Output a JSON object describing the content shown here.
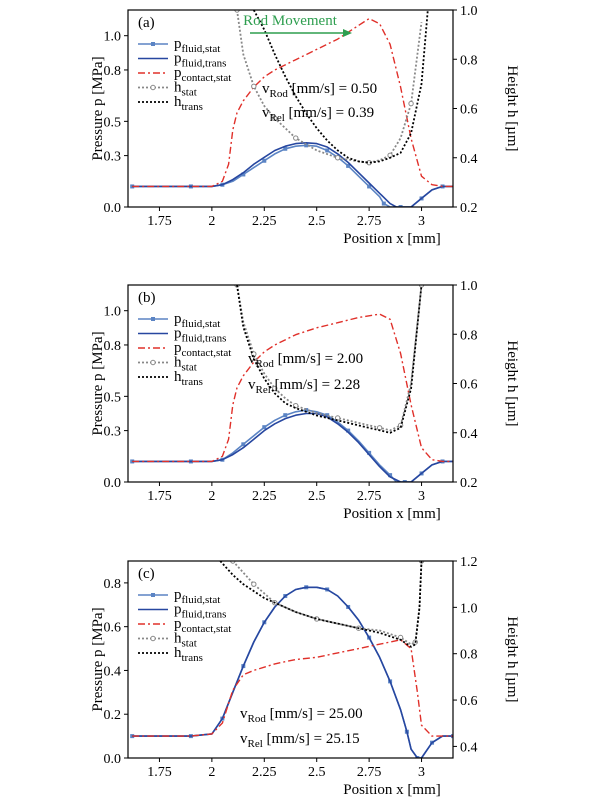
{
  "chart_data": [
    {
      "type": "line",
      "panel": "(a)",
      "xlabel": "Position x [mm]",
      "ylabel": "Pressure p [MPa]",
      "y2label": "Height h [µm]",
      "xlim": [
        1.6,
        3.15
      ],
      "ylim": [
        0,
        1.15
      ],
      "y2lim": [
        0.2,
        1.0
      ],
      "xticks": [
        "1.75",
        "2",
        "2.25",
        "2.5",
        "2.75",
        "3"
      ],
      "yticks": [
        "0.0",
        "0.3",
        "0.5",
        "0.8",
        "1.0"
      ],
      "y2ticks": [
        "0.2",
        "0.4",
        "0.6",
        "0.8",
        "1.0"
      ],
      "annotation_top": "Rod Movement",
      "annotation_rod": "[mm/s] = 0.50",
      "annotation_rel": "[mm/s] = 0.39",
      "legend_pos": "top-left",
      "series": [
        {
          "name": "p_fluid,stat",
          "axis": "left",
          "style": "solid-square",
          "color": "#5b84c4",
          "x": [
            1.62,
            1.75,
            1.9,
            2.0,
            2.05,
            2.1,
            2.15,
            2.2,
            2.25,
            2.3,
            2.35,
            2.4,
            2.45,
            2.5,
            2.55,
            2.6,
            2.65,
            2.7,
            2.75,
            2.8,
            2.82,
            2.85,
            2.9,
            2.95,
            3.0,
            3.05,
            3.1,
            3.15
          ],
          "y": [
            0.12,
            0.12,
            0.12,
            0.12,
            0.13,
            0.15,
            0.19,
            0.23,
            0.27,
            0.31,
            0.34,
            0.355,
            0.36,
            0.355,
            0.33,
            0.29,
            0.24,
            0.18,
            0.12,
            0.06,
            0.02,
            0.0,
            0.0,
            0.0,
            0.05,
            0.1,
            0.12,
            0.12
          ]
        },
        {
          "name": "p_fluid,trans",
          "axis": "left",
          "style": "solid",
          "color": "#2747a0",
          "x": [
            1.62,
            1.75,
            1.9,
            2.0,
            2.05,
            2.1,
            2.15,
            2.2,
            2.25,
            2.3,
            2.35,
            2.4,
            2.45,
            2.5,
            2.55,
            2.6,
            2.65,
            2.7,
            2.75,
            2.8,
            2.85,
            2.88,
            2.92,
            2.95,
            3.0,
            3.05,
            3.1,
            3.15
          ],
          "y": [
            0.12,
            0.12,
            0.12,
            0.12,
            0.13,
            0.16,
            0.2,
            0.25,
            0.29,
            0.33,
            0.355,
            0.37,
            0.375,
            0.37,
            0.35,
            0.31,
            0.26,
            0.2,
            0.14,
            0.08,
            0.02,
            0.0,
            0.0,
            0.0,
            0.05,
            0.1,
            0.12,
            0.12
          ]
        },
        {
          "name": "p_contact,stat",
          "axis": "left",
          "style": "dash-dot",
          "color": "#e0302a",
          "x": [
            1.62,
            1.75,
            1.9,
            2.0,
            2.05,
            2.08,
            2.1,
            2.12,
            2.15,
            2.2,
            2.25,
            2.3,
            2.4,
            2.5,
            2.6,
            2.7,
            2.75,
            2.8,
            2.85,
            2.9,
            2.95,
            3.0,
            3.05,
            3.1,
            3.15
          ],
          "y": [
            0.12,
            0.12,
            0.12,
            0.12,
            0.15,
            0.25,
            0.45,
            0.55,
            0.62,
            0.7,
            0.76,
            0.8,
            0.86,
            0.92,
            0.98,
            1.06,
            1.1,
            1.07,
            0.95,
            0.7,
            0.4,
            0.18,
            0.13,
            0.12,
            0.12
          ]
        },
        {
          "name": "h_stat",
          "axis": "right",
          "style": "dotted-circle",
          "color": "#888888",
          "x": [
            2.12,
            2.15,
            2.2,
            2.25,
            2.3,
            2.35,
            2.4,
            2.5,
            2.6,
            2.7,
            2.75,
            2.8,
            2.85,
            2.9,
            2.95,
            3.0
          ],
          "y": [
            1.0,
            0.82,
            0.69,
            0.61,
            0.56,
            0.52,
            0.48,
            0.43,
            0.4,
            0.385,
            0.38,
            0.39,
            0.41,
            0.48,
            0.62,
            0.95
          ]
        },
        {
          "name": "h_trans",
          "axis": "right",
          "style": "dotted",
          "color": "#000000",
          "x": [
            2.2,
            2.25,
            2.3,
            2.35,
            2.4,
            2.45,
            2.5,
            2.55,
            2.6,
            2.65,
            2.7,
            2.75,
            2.8,
            2.85,
            2.9,
            2.95,
            3.0,
            3.03
          ],
          "y": [
            1.0,
            0.92,
            0.82,
            0.73,
            0.65,
            0.58,
            0.52,
            0.47,
            0.43,
            0.4,
            0.385,
            0.38,
            0.385,
            0.4,
            0.42,
            0.5,
            0.7,
            1.0
          ]
        }
      ]
    },
    {
      "type": "line",
      "panel": "(b)",
      "xlabel": "Position x [mm]",
      "ylabel": "Pressure p [MPa]",
      "y2label": "Height h [µm]",
      "xlim": [
        1.6,
        3.15
      ],
      "ylim": [
        0,
        1.15
      ],
      "y2lim": [
        0.2,
        1.0
      ],
      "xticks": [
        "1.75",
        "2",
        "2.25",
        "2.5",
        "2.75",
        "3"
      ],
      "yticks": [
        "0.0",
        "0.3",
        "0.5",
        "0.8",
        "1.0"
      ],
      "y2ticks": [
        "0.2",
        "0.4",
        "0.6",
        "0.8",
        "1.0"
      ],
      "annotation_rod": "[mm/s] = 2.00",
      "annotation_rel": "[mm/s] = 2.28",
      "legend_pos": "top-left",
      "series": [
        {
          "name": "p_fluid,stat",
          "axis": "left",
          "style": "solid-square",
          "color": "#5b84c4",
          "x": [
            1.62,
            1.75,
            1.9,
            2.0,
            2.05,
            2.1,
            2.15,
            2.2,
            2.25,
            2.3,
            2.35,
            2.4,
            2.45,
            2.5,
            2.55,
            2.6,
            2.65,
            2.7,
            2.75,
            2.8,
            2.85,
            2.88,
            2.92,
            2.95,
            3.0,
            3.05,
            3.1,
            3.15
          ],
          "y": [
            0.12,
            0.12,
            0.12,
            0.12,
            0.13,
            0.17,
            0.22,
            0.27,
            0.32,
            0.36,
            0.39,
            0.41,
            0.42,
            0.41,
            0.39,
            0.35,
            0.3,
            0.24,
            0.17,
            0.1,
            0.04,
            0.0,
            0.0,
            0.0,
            0.05,
            0.1,
            0.12,
            0.12
          ]
        },
        {
          "name": "p_fluid,trans",
          "axis": "left",
          "style": "solid",
          "color": "#2747a0",
          "x": [
            1.62,
            1.75,
            1.9,
            2.0,
            2.05,
            2.1,
            2.15,
            2.2,
            2.25,
            2.3,
            2.35,
            2.4,
            2.45,
            2.5,
            2.55,
            2.6,
            2.65,
            2.7,
            2.75,
            2.8,
            2.85,
            2.9,
            2.95,
            3.0,
            3.05,
            3.1,
            3.15
          ],
          "y": [
            0.12,
            0.12,
            0.12,
            0.12,
            0.13,
            0.16,
            0.2,
            0.25,
            0.3,
            0.34,
            0.37,
            0.39,
            0.4,
            0.4,
            0.38,
            0.34,
            0.29,
            0.23,
            0.16,
            0.09,
            0.03,
            0.0,
            0.0,
            0.05,
            0.1,
            0.12,
            0.12
          ]
        },
        {
          "name": "p_contact,stat",
          "axis": "left",
          "style": "dash-dot",
          "color": "#e0302a",
          "x": [
            1.62,
            1.75,
            1.9,
            2.0,
            2.05,
            2.08,
            2.1,
            2.12,
            2.15,
            2.2,
            2.25,
            2.3,
            2.4,
            2.5,
            2.6,
            2.7,
            2.8,
            2.85,
            2.9,
            2.95,
            3.0,
            3.05,
            3.1,
            3.15
          ],
          "y": [
            0.12,
            0.12,
            0.12,
            0.12,
            0.15,
            0.25,
            0.45,
            0.55,
            0.62,
            0.7,
            0.76,
            0.8,
            0.86,
            0.9,
            0.93,
            0.96,
            0.98,
            0.95,
            0.75,
            0.45,
            0.2,
            0.13,
            0.12,
            0.12
          ]
        },
        {
          "name": "h_stat",
          "axis": "right",
          "style": "dotted-circle",
          "color": "#888888",
          "x": [
            2.12,
            2.15,
            2.2,
            2.25,
            2.3,
            2.35,
            2.4,
            2.5,
            2.6,
            2.7,
            2.8,
            2.85,
            2.9,
            2.95,
            3.0
          ],
          "y": [
            1.0,
            0.85,
            0.72,
            0.64,
            0.58,
            0.54,
            0.51,
            0.48,
            0.46,
            0.44,
            0.42,
            0.41,
            0.43,
            0.6,
            1.0
          ]
        },
        {
          "name": "h_trans",
          "axis": "right",
          "style": "dotted",
          "color": "#000000",
          "x": [
            2.12,
            2.15,
            2.2,
            2.25,
            2.3,
            2.35,
            2.4,
            2.5,
            2.6,
            2.7,
            2.8,
            2.85,
            2.9,
            2.95,
            3.0
          ],
          "y": [
            1.0,
            0.83,
            0.7,
            0.62,
            0.56,
            0.52,
            0.5,
            0.47,
            0.45,
            0.43,
            0.41,
            0.4,
            0.42,
            0.58,
            1.0
          ]
        }
      ]
    },
    {
      "type": "line",
      "panel": "(c)",
      "xlabel": "Position x [mm]",
      "ylabel": "Pressure p [MPa]",
      "y2label": "Height h [µm]",
      "xlim": [
        1.6,
        3.15
      ],
      "ylim": [
        0,
        0.9
      ],
      "y2lim": [
        0.35,
        1.2
      ],
      "xticks": [
        "1.75",
        "2",
        "2.25",
        "2.5",
        "2.75",
        "3"
      ],
      "yticks": [
        "0.0",
        "0.2",
        "0.4",
        "0.6",
        "0.8"
      ],
      "y2ticks": [
        "0.4",
        "0.6",
        "0.8",
        "1.0",
        "1.2"
      ],
      "annotation_rod": "[mm/s] = 25.00",
      "annotation_rel": "[mm/s] = 25.15",
      "legend_pos": "top-left",
      "series": [
        {
          "name": "p_fluid,stat",
          "axis": "left",
          "style": "solid-square",
          "color": "#5b84c4",
          "x": [
            1.62,
            1.75,
            1.9,
            2.0,
            2.05,
            2.1,
            2.15,
            2.2,
            2.25,
            2.3,
            2.35,
            2.4,
            2.45,
            2.5,
            2.55,
            2.6,
            2.65,
            2.7,
            2.75,
            2.8,
            2.85,
            2.9,
            2.93,
            2.95,
            2.98,
            3.0,
            3.05,
            3.1,
            3.15
          ],
          "y": [
            0.1,
            0.1,
            0.1,
            0.11,
            0.18,
            0.3,
            0.42,
            0.53,
            0.62,
            0.69,
            0.74,
            0.77,
            0.78,
            0.78,
            0.77,
            0.74,
            0.69,
            0.63,
            0.55,
            0.46,
            0.35,
            0.22,
            0.12,
            0.04,
            0.0,
            0.0,
            0.07,
            0.1,
            0.1
          ]
        },
        {
          "name": "p_fluid,trans",
          "axis": "left",
          "style": "solid",
          "color": "#2747a0",
          "x": [
            1.62,
            1.75,
            1.9,
            2.0,
            2.05,
            2.1,
            2.15,
            2.2,
            2.25,
            2.3,
            2.35,
            2.4,
            2.45,
            2.5,
            2.55,
            2.6,
            2.65,
            2.7,
            2.75,
            2.8,
            2.85,
            2.9,
            2.93,
            2.95,
            2.98,
            3.0,
            3.05,
            3.1,
            3.15
          ],
          "y": [
            0.1,
            0.1,
            0.1,
            0.11,
            0.18,
            0.3,
            0.42,
            0.53,
            0.62,
            0.69,
            0.74,
            0.77,
            0.78,
            0.78,
            0.77,
            0.74,
            0.69,
            0.63,
            0.55,
            0.46,
            0.35,
            0.22,
            0.12,
            0.04,
            0.0,
            0.0,
            0.07,
            0.1,
            0.1
          ]
        },
        {
          "name": "p_contact,stat",
          "axis": "left",
          "style": "dash-dot",
          "color": "#e0302a",
          "x": [
            1.62,
            1.75,
            1.9,
            2.0,
            2.05,
            2.08,
            2.1,
            2.15,
            2.2,
            2.3,
            2.4,
            2.5,
            2.6,
            2.7,
            2.8,
            2.9,
            2.95,
            2.98,
            3.0,
            3.05,
            3.1,
            3.15
          ],
          "y": [
            0.1,
            0.1,
            0.1,
            0.11,
            0.16,
            0.25,
            0.31,
            0.38,
            0.4,
            0.43,
            0.45,
            0.46,
            0.48,
            0.5,
            0.52,
            0.54,
            0.5,
            0.3,
            0.15,
            0.1,
            0.1,
            0.1
          ]
        },
        {
          "name": "h_stat",
          "axis": "right",
          "style": "dotted-circle",
          "color": "#888888",
          "x": [
            2.1,
            2.15,
            2.2,
            2.25,
            2.3,
            2.4,
            2.5,
            2.6,
            2.7,
            2.8,
            2.9,
            2.95,
            2.97,
            2.99,
            3.0
          ],
          "y": [
            1.2,
            1.15,
            1.1,
            1.06,
            1.02,
            0.98,
            0.95,
            0.93,
            0.91,
            0.9,
            0.87,
            0.84,
            0.85,
            1.0,
            1.2
          ]
        },
        {
          "name": "h_trans",
          "axis": "right",
          "style": "dotted",
          "color": "#000000",
          "x": [
            2.04,
            2.1,
            2.15,
            2.2,
            2.25,
            2.3,
            2.4,
            2.5,
            2.6,
            2.7,
            2.8,
            2.9,
            2.95,
            2.97,
            2.99,
            3.0
          ],
          "y": [
            1.2,
            1.14,
            1.1,
            1.07,
            1.04,
            1.02,
            0.98,
            0.95,
            0.93,
            0.91,
            0.89,
            0.86,
            0.83,
            0.84,
            1.0,
            1.2
          ]
        }
      ]
    }
  ],
  "legend": {
    "entries": [
      {
        "main": "p",
        "sub": "fluid,stat"
      },
      {
        "main": "p",
        "sub": "fluid,trans"
      },
      {
        "main": "p",
        "sub": "contact,stat"
      },
      {
        "main": "h",
        "sub": "stat"
      },
      {
        "main": "h",
        "sub": "trans"
      }
    ],
    "vrod_main": "v",
    "vrod_sub": "Rod",
    "vrel_main": "v",
    "vrel_sub": "Rel"
  },
  "colors": {
    "fluid_stat": "#5b84c4",
    "fluid_trans": "#2747a0",
    "contact": "#e0302a",
    "h_stat": "#888888",
    "h_trans": "#000000",
    "arrow": "#2e9e4f"
  }
}
